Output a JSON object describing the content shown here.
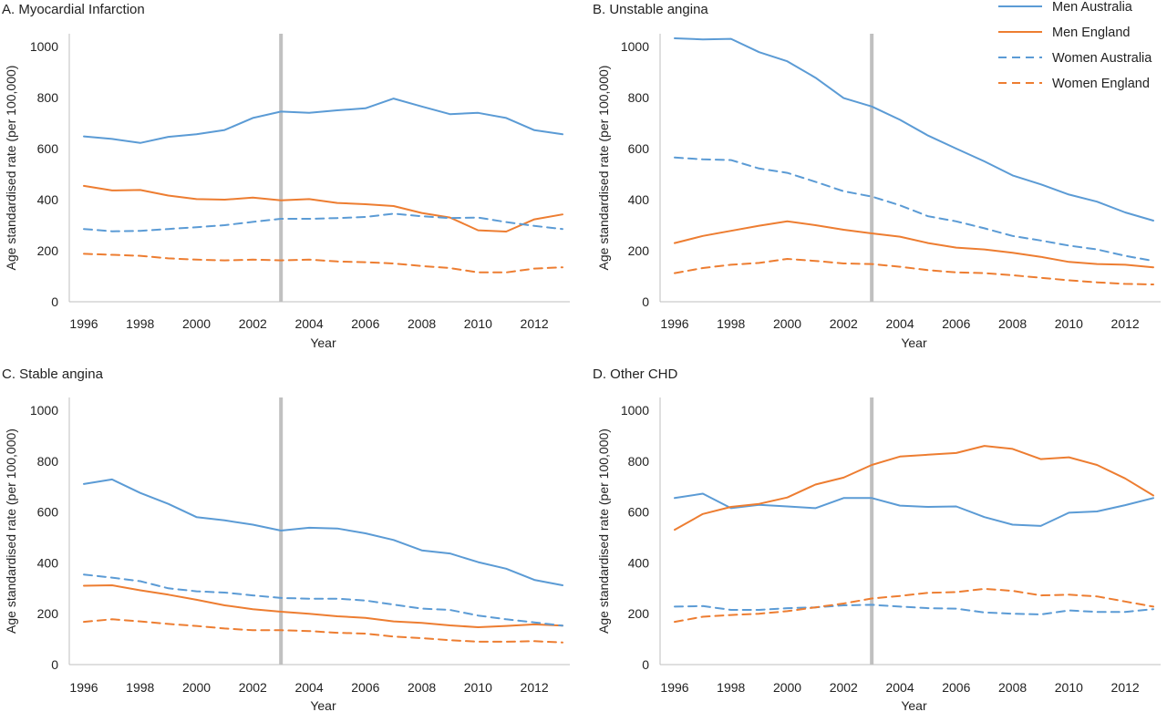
{
  "figure": {
    "legend": [
      {
        "label": "Men Australia",
        "color": "#5b9bd5",
        "dash": false
      },
      {
        "label": "Men England",
        "color": "#ed7d31",
        "dash": false
      },
      {
        "label": "Women Australia",
        "color": "#5b9bd5",
        "dash": true
      },
      {
        "label": "Women England",
        "color": "#ed7d31",
        "dash": true
      }
    ],
    "marker_year": 2003,
    "marker_color": "#c0c0c0"
  },
  "chart_data": [
    {
      "type": "line",
      "title": "A. Myocardial Infarction",
      "xlabel": "Year",
      "ylabel": "Age standardised rate (per 100,000)",
      "x": [
        1996,
        1997,
        1998,
        1999,
        2000,
        2001,
        2002,
        2003,
        2004,
        2005,
        2006,
        2007,
        2008,
        2009,
        2010,
        2011,
        2012,
        2013
      ],
      "xticks": [
        1996,
        1998,
        2000,
        2002,
        2004,
        2006,
        2008,
        2010,
        2012
      ],
      "yticks": [
        0,
        200,
        400,
        600,
        800,
        1000
      ],
      "ylim": [
        0,
        1050
      ],
      "grid": false,
      "series": [
        {
          "name": "Men Australia",
          "values": [
            648,
            638,
            622,
            646,
            656,
            673,
            720,
            745,
            740,
            750,
            758,
            796,
            765,
            735,
            740,
            720,
            672,
            656
          ]
        },
        {
          "name": "Men England",
          "values": [
            454,
            436,
            438,
            416,
            402,
            400,
            408,
            397,
            402,
            387,
            382,
            375,
            348,
            330,
            280,
            275,
            323,
            342
          ]
        },
        {
          "name": "Women Australia",
          "values": [
            285,
            276,
            278,
            285,
            292,
            300,
            313,
            325,
            325,
            328,
            332,
            345,
            335,
            328,
            330,
            312,
            297,
            285
          ]
        },
        {
          "name": "Women England",
          "values": [
            188,
            184,
            180,
            170,
            165,
            162,
            165,
            162,
            165,
            158,
            155,
            150,
            140,
            132,
            115,
            115,
            130,
            135
          ]
        }
      ]
    },
    {
      "type": "line",
      "title": "B. Unstable angina",
      "xlabel": "Year",
      "ylabel": "Age standardised rate (per 100,000)",
      "x": [
        1996,
        1997,
        1998,
        1999,
        2000,
        2001,
        2002,
        2003,
        2004,
        2005,
        2006,
        2007,
        2008,
        2009,
        2010,
        2011,
        2012,
        2013
      ],
      "xticks": [
        1996,
        1998,
        2000,
        2002,
        2004,
        2006,
        2008,
        2010,
        2012
      ],
      "yticks": [
        0,
        200,
        400,
        600,
        800,
        1000
      ],
      "ylim": [
        0,
        1050
      ],
      "grid": false,
      "series": [
        {
          "name": "Men Australia",
          "values": [
            1032,
            1028,
            1030,
            978,
            942,
            878,
            798,
            765,
            713,
            651,
            600,
            550,
            495,
            460,
            420,
            392,
            350,
            318
          ]
        },
        {
          "name": "Men England",
          "values": [
            230,
            258,
            278,
            298,
            315,
            300,
            282,
            268,
            255,
            230,
            212,
            205,
            192,
            176,
            156,
            148,
            145,
            135
          ]
        },
        {
          "name": "Women Australia",
          "values": [
            565,
            558,
            555,
            522,
            505,
            470,
            433,
            412,
            378,
            335,
            315,
            288,
            258,
            240,
            220,
            205,
            180,
            160
          ]
        },
        {
          "name": "Women England",
          "values": [
            112,
            132,
            145,
            152,
            168,
            160,
            150,
            148,
            137,
            124,
            115,
            112,
            104,
            94,
            84,
            76,
            70,
            68
          ]
        }
      ]
    },
    {
      "type": "line",
      "title": "C. Stable angina",
      "xlabel": "Year",
      "ylabel": "Age standardised rate (per 100,000)",
      "x": [
        1996,
        1997,
        1998,
        1999,
        2000,
        2001,
        2002,
        2003,
        2004,
        2005,
        2006,
        2007,
        2008,
        2009,
        2010,
        2011,
        2012,
        2013
      ],
      "xticks": [
        1996,
        1998,
        2000,
        2002,
        2004,
        2006,
        2008,
        2010,
        2012
      ],
      "yticks": [
        0,
        200,
        400,
        600,
        800,
        1000
      ],
      "ylim": [
        0,
        1050
      ],
      "grid": false,
      "series": [
        {
          "name": "Men Australia",
          "values": [
            710,
            728,
            675,
            632,
            580,
            567,
            550,
            527,
            538,
            535,
            516,
            490,
            449,
            437,
            403,
            377,
            333,
            312
          ]
        },
        {
          "name": "Men England",
          "values": [
            310,
            312,
            292,
            275,
            255,
            233,
            218,
            208,
            200,
            190,
            184,
            170,
            164,
            154,
            147,
            152,
            158,
            153
          ]
        },
        {
          "name": "Women Australia",
          "values": [
            354,
            342,
            328,
            300,
            288,
            283,
            272,
            262,
            259,
            259,
            252,
            236,
            220,
            215,
            193,
            178,
            166,
            153
          ]
        },
        {
          "name": "Women England",
          "values": [
            168,
            178,
            170,
            160,
            152,
            142,
            135,
            135,
            132,
            125,
            122,
            110,
            104,
            96,
            90,
            90,
            92,
            87
          ]
        }
      ]
    },
    {
      "type": "line",
      "title": "D. Other CHD",
      "xlabel": "Year",
      "ylabel": "Age standardised rate (per 100,000)",
      "x": [
        1996,
        1997,
        1998,
        1999,
        2000,
        2001,
        2002,
        2003,
        2004,
        2005,
        2006,
        2007,
        2008,
        2009,
        2010,
        2011,
        2012,
        2013
      ],
      "xticks": [
        1996,
        1998,
        2000,
        2002,
        2004,
        2006,
        2008,
        2010,
        2012
      ],
      "yticks": [
        0,
        200,
        400,
        600,
        800,
        1000
      ],
      "ylim": [
        0,
        1050
      ],
      "grid": false,
      "series": [
        {
          "name": "Men Australia",
          "values": [
            655,
            672,
            615,
            628,
            622,
            615,
            655,
            655,
            625,
            620,
            622,
            580,
            550,
            545,
            597,
            602,
            627,
            655
          ]
        },
        {
          "name": "Men England",
          "values": [
            530,
            592,
            620,
            632,
            657,
            708,
            735,
            785,
            818,
            825,
            832,
            860,
            848,
            808,
            815,
            785,
            732,
            665
          ]
        },
        {
          "name": "Women Australia",
          "values": [
            228,
            230,
            215,
            215,
            222,
            225,
            233,
            235,
            228,
            222,
            220,
            205,
            200,
            197,
            213,
            207,
            207,
            218
          ]
        },
        {
          "name": "Women England",
          "values": [
            168,
            188,
            195,
            200,
            210,
            225,
            240,
            260,
            270,
            282,
            285,
            298,
            290,
            272,
            275,
            268,
            248,
            228
          ]
        }
      ]
    }
  ]
}
